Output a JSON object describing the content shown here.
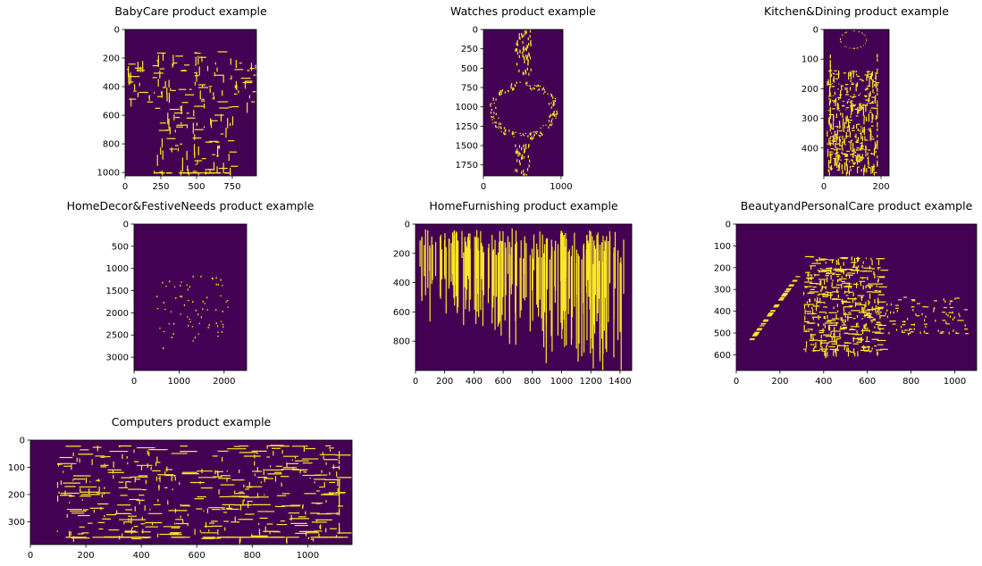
{
  "figure": {
    "background": "#ffffff",
    "colormap": "viridis",
    "background_color": "#440154",
    "edge_color": "#fde725"
  },
  "chart_data": [
    {
      "type": "heatmap",
      "title": "BabyCare product example",
      "xlim": [
        0,
        919
      ],
      "ylim": [
        1024,
        0
      ],
      "xticks": [
        0,
        250,
        500,
        750
      ],
      "yticks": [
        0,
        200,
        400,
        600,
        800,
        1000
      ],
      "edge_pattern": "shirt"
    },
    {
      "type": "heatmap",
      "title": "Watches product example",
      "xlim": [
        0,
        1024
      ],
      "ylim": [
        1892,
        0
      ],
      "xticks": [
        0,
        1000
      ],
      "yticks": [
        0,
        250,
        500,
        750,
        1000,
        1250,
        1500,
        1750
      ],
      "edge_pattern": "watch"
    },
    {
      "type": "heatmap",
      "title": "Kitchen&Dining product example",
      "xlim": [
        0,
        228
      ],
      "ylim": [
        494,
        0
      ],
      "xticks": [
        0,
        200
      ],
      "yticks": [
        0,
        100,
        200,
        300,
        400
      ],
      "edge_pattern": "bottle"
    },
    {
      "type": "heatmap",
      "title": "HomeDecor&FestiveNeeds product example",
      "xlim": [
        0,
        2500
      ],
      "ylim": [
        3300,
        0
      ],
      "xticks": [
        0,
        1000,
        2000
      ],
      "yticks": [
        0,
        500,
        1000,
        1500,
        2000,
        2500,
        3000
      ],
      "edge_pattern": "sparse"
    },
    {
      "type": "heatmap",
      "title": "HomeFurnishing product example",
      "xlim": [
        0,
        1480
      ],
      "ylim": [
        1000,
        0
      ],
      "xticks": [
        0,
        200,
        400,
        600,
        800,
        1000,
        1200,
        1400
      ],
      "yticks": [
        0,
        200,
        400,
        600,
        800
      ],
      "edge_pattern": "rug"
    },
    {
      "type": "heatmap",
      "title": "BeautyandPersonalCare product example",
      "xlim": [
        0,
        1100
      ],
      "ylim": [
        672,
        0
      ],
      "xticks": [
        0,
        200,
        400,
        600,
        800,
        1000
      ],
      "yticks": [
        0,
        100,
        200,
        300,
        400,
        500,
        600
      ],
      "edge_pattern": "bags"
    },
    {
      "type": "heatmap",
      "title": "Computers product example",
      "xlim": [
        0,
        1160
      ],
      "ylim": [
        384,
        0
      ],
      "xticks": [
        0,
        200,
        400,
        600,
        800,
        1000
      ],
      "yticks": [
        0,
        100,
        200,
        300
      ],
      "edge_pattern": "laptop"
    }
  ]
}
